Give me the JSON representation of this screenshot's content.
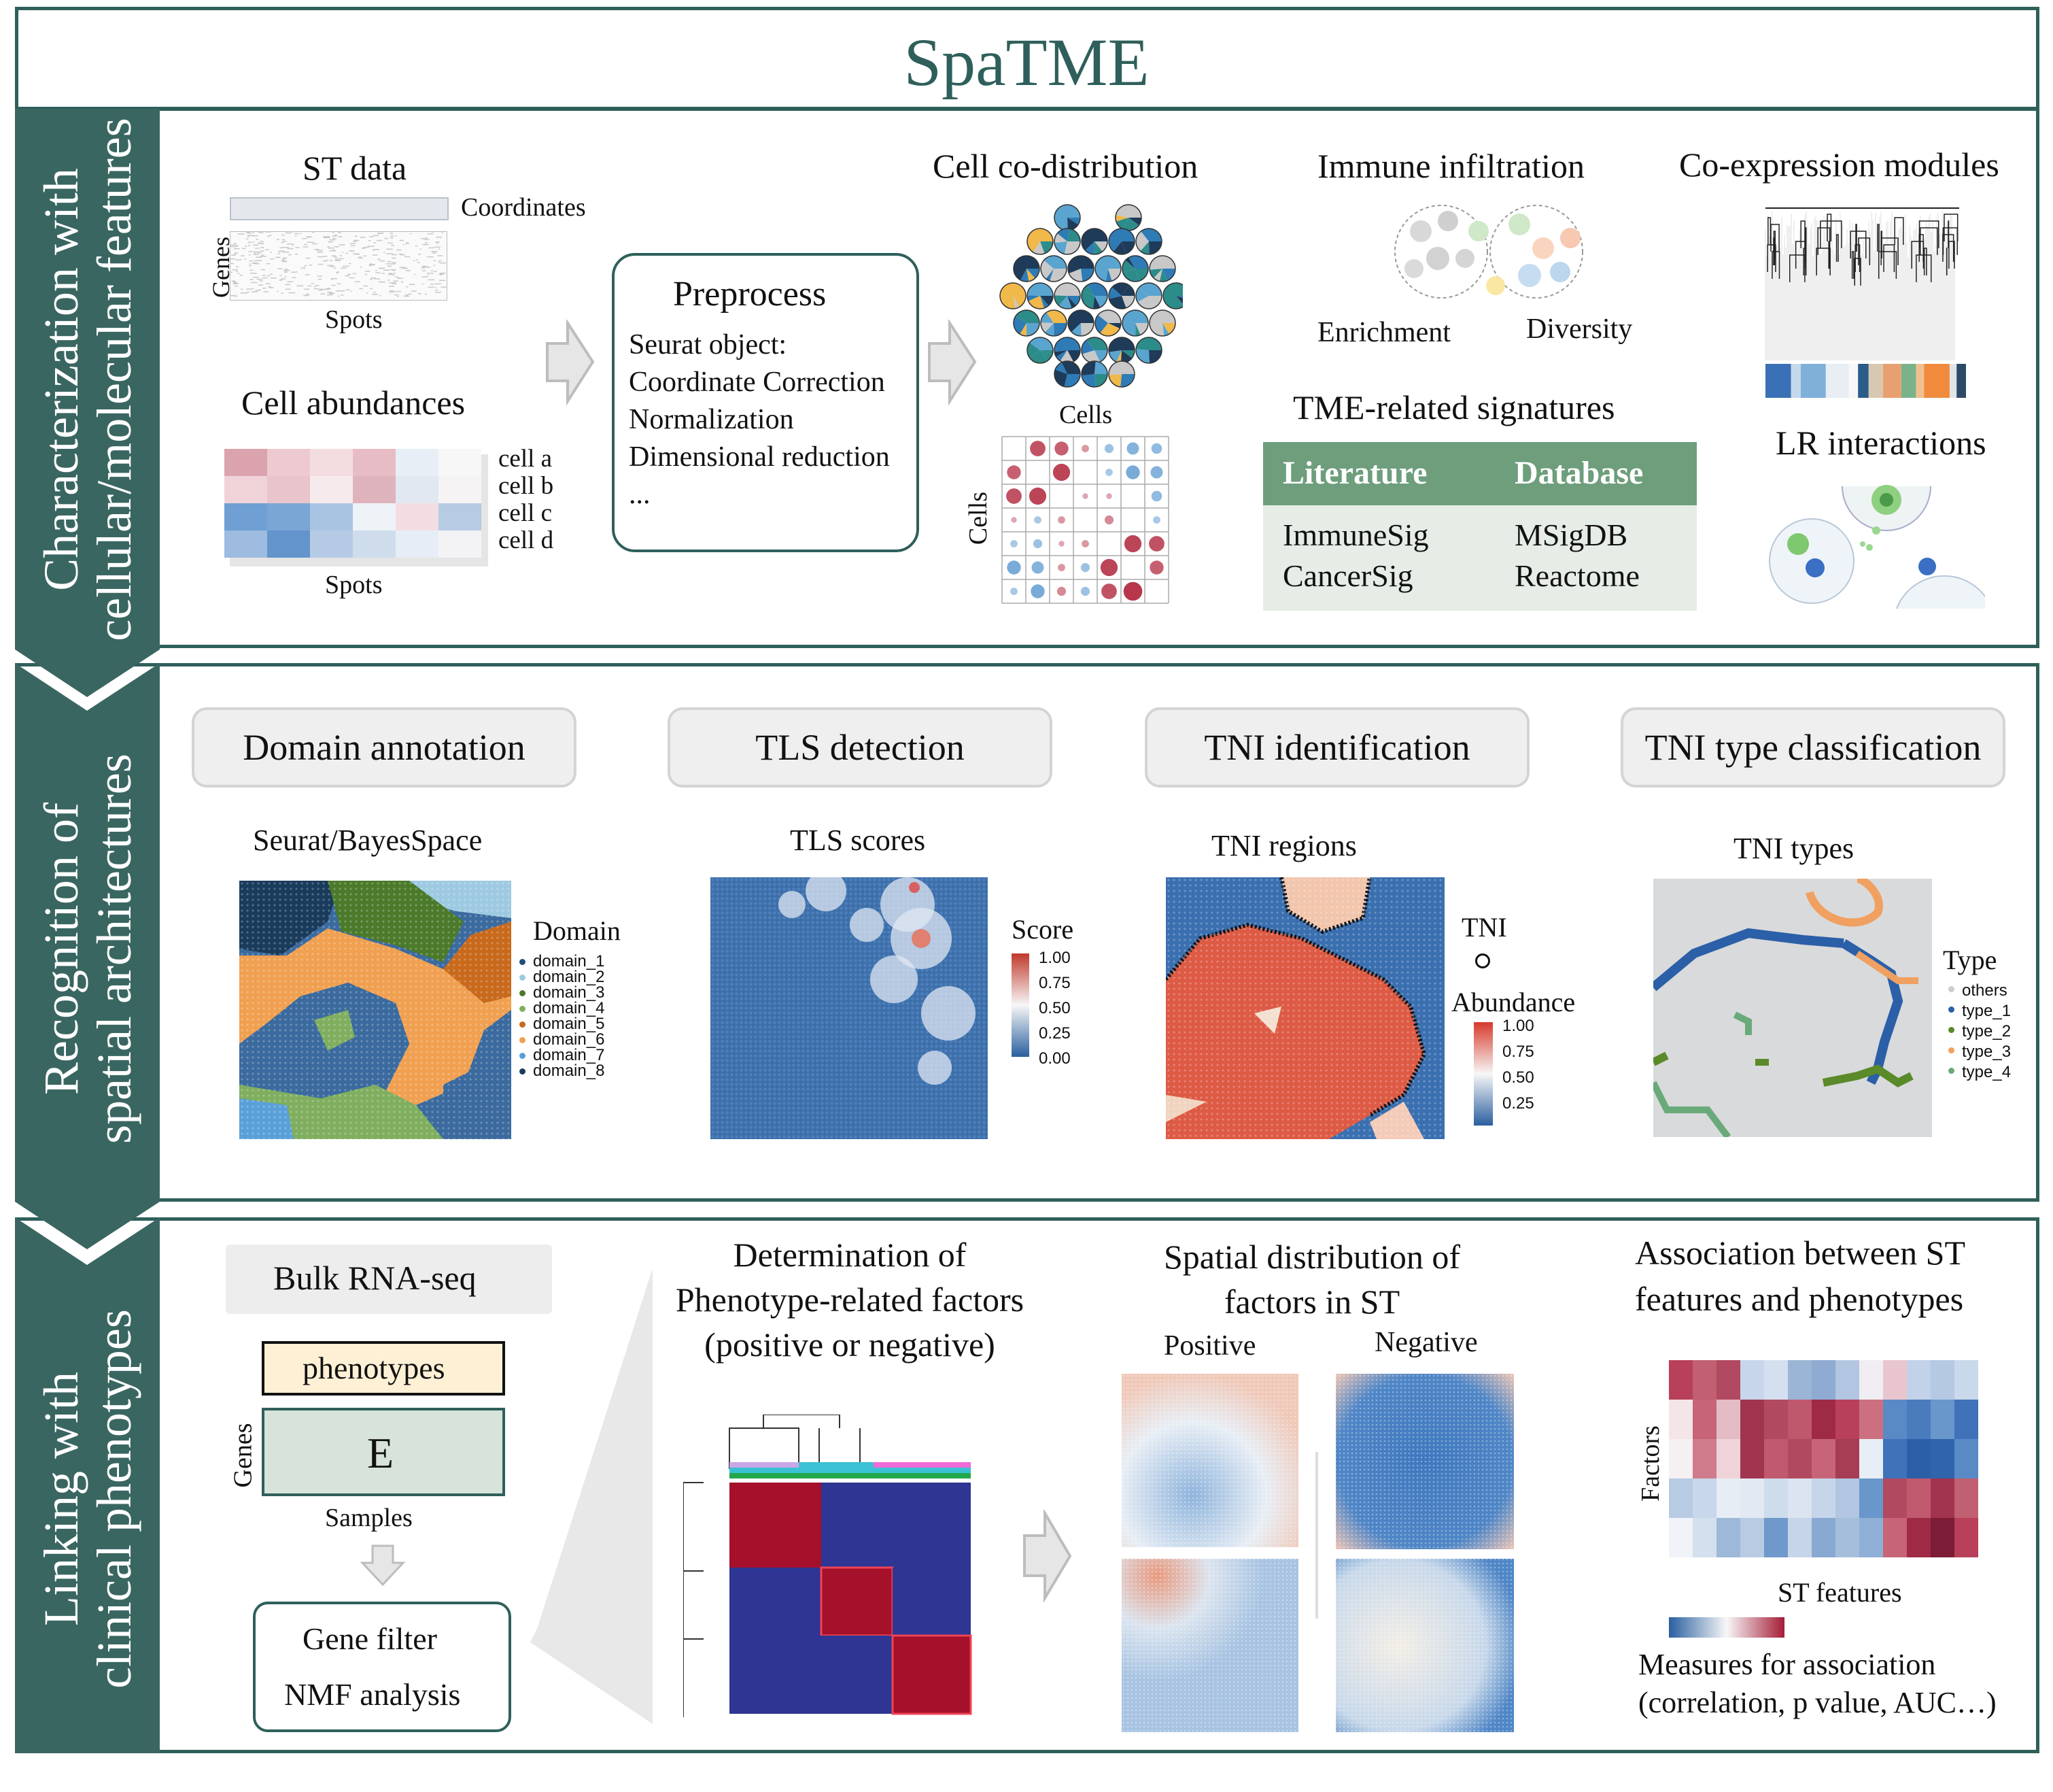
{
  "title": "SpaTME",
  "sections": [
    {
      "label_line1": "Characterization with",
      "label_line2": "cellular/molecular features"
    },
    {
      "label_line1": "Recognition of",
      "label_line2": "spatial architectures"
    },
    {
      "label_line1": "Linking with",
      "label_line2": "clinical phenotypes"
    }
  ],
  "s1": {
    "st_data": "ST data",
    "coordinates": "Coordinates",
    "genes": "Genes",
    "spots": "Spots",
    "cell_abundances": "Cell abundances",
    "cells": [
      "cell a",
      "cell b",
      "cell c",
      "cell d"
    ],
    "spots2": "Spots",
    "preprocess_title": "Preprocess",
    "preprocess_items": [
      "Seurat object:",
      "Coordinate Correction",
      "Normalization",
      "Dimensional reduction",
      "..."
    ],
    "cell_codist": "Cell co-distribution",
    "cells_x": "Cells",
    "cells_y": "Cells",
    "immune": "Immune infiltration",
    "enrichment": "Enrichment",
    "diversity": "Diversity",
    "tme_sigs": "TME-related signatures",
    "table_headers": [
      "Literature",
      "Database"
    ],
    "table_rows": [
      [
        "ImmuneSig",
        "MSigDB"
      ],
      [
        "CancerSig",
        "Reactome"
      ]
    ],
    "coexp": "Co-expression modules",
    "lr": "LR interactions",
    "colors": {
      "table_header": "#6e9e7c",
      "table_body": "#e6ece6",
      "teal": "#2f5f5b"
    }
  },
  "s2": {
    "pills": [
      "Domain annotation",
      "TLS detection",
      "TNI identification",
      "TNI type classification"
    ],
    "sub": [
      "Seurat/BayesSpace",
      "TLS scores",
      "TNI regions",
      "TNI types"
    ],
    "domain_legend_title": "Domain",
    "domains": [
      {
        "name": "domain_1",
        "color": "#1f4e79"
      },
      {
        "name": "domain_2",
        "color": "#9ecae1"
      },
      {
        "name": "domain_3",
        "color": "#4a7a2a"
      },
      {
        "name": "domain_4",
        "color": "#7fae5f"
      },
      {
        "name": "domain_5",
        "color": "#c8691c"
      },
      {
        "name": "domain_6",
        "color": "#f0a050"
      },
      {
        "name": "domain_7",
        "color": "#5aa0d8"
      },
      {
        "name": "domain_8",
        "color": "#1a3b5c"
      }
    ],
    "score_title": "Score",
    "score_ticks": [
      "1.00",
      "0.75",
      "0.50",
      "0.25",
      "0.00"
    ],
    "tni_title": "TNI",
    "abundance_title": "Abundance",
    "abundance_ticks": [
      "1.00",
      "0.75",
      "0.50",
      "0.25"
    ],
    "type_title": "Type",
    "types": [
      {
        "name": "others",
        "color": "#cccccc"
      },
      {
        "name": "type_1",
        "color": "#2b5fa8"
      },
      {
        "name": "type_2",
        "color": "#5a8a2a"
      },
      {
        "name": "type_3",
        "color": "#f0a060"
      },
      {
        "name": "type_4",
        "color": "#6aaa7a"
      }
    ]
  },
  "s3": {
    "bulk": "Bulk RNA-seq",
    "phenotypes": "phenotypes",
    "E": "E",
    "genes": "Genes",
    "samples": "Samples",
    "gene_filter": "Gene filter",
    "nmf": "NMF analysis",
    "determination_lines": [
      "Determination of",
      "Phenotype-related factors",
      "(positive or negative)"
    ],
    "spatial_lines": [
      "Spatial distribution of",
      "factors in ST"
    ],
    "positive": "Positive",
    "negative": "Negative",
    "assoc_lines": [
      "Association between ST",
      "features and phenotypes"
    ],
    "factors": "Factors",
    "st_features": "ST features",
    "measures_lines": [
      "Measures for association",
      "(correlation, p value, AUC…)"
    ]
  }
}
